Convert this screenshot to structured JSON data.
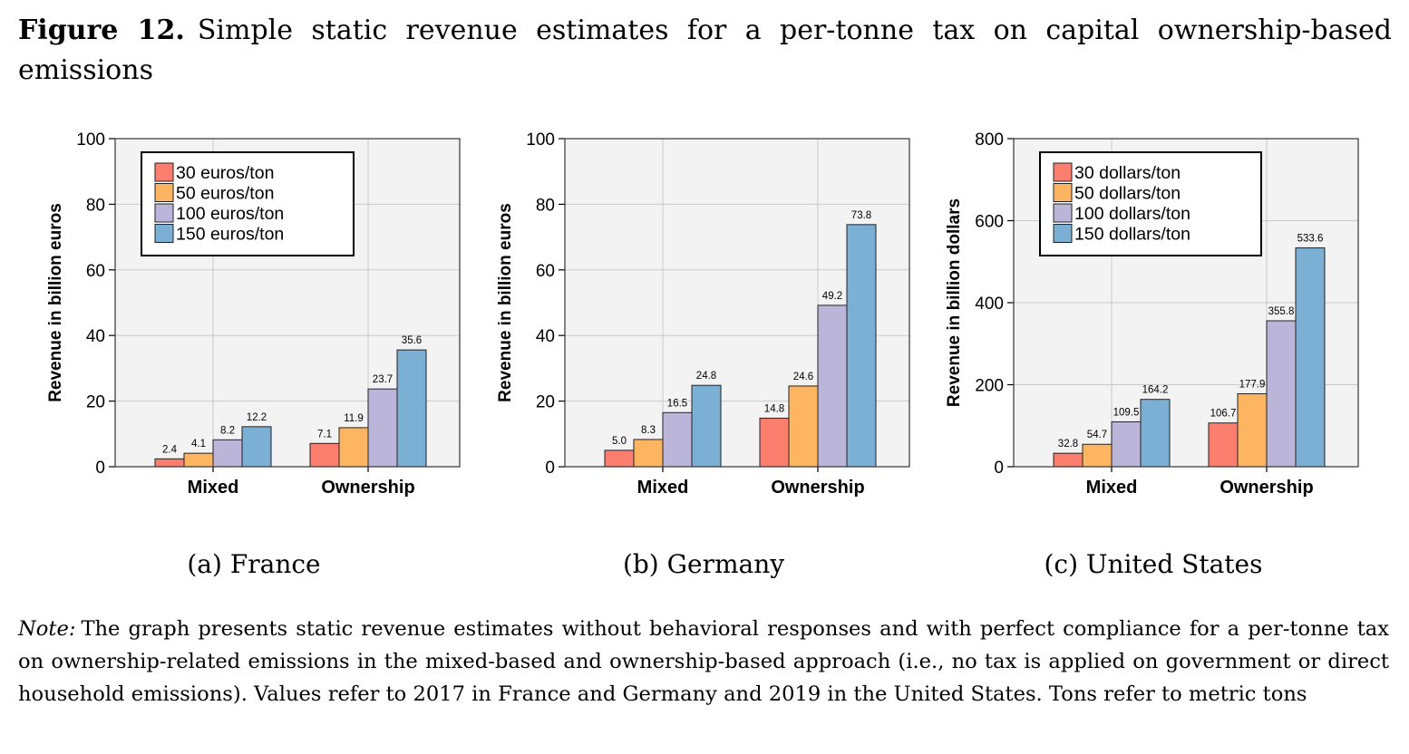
{
  "figure": {
    "label": "Figure 12.",
    "title": "Simple static revenue estimates for a per-tonne tax on capital ownership-based emissions"
  },
  "note": {
    "label": "Note:",
    "text": "The graph presents static revenue estimates without behavioral responses and with perfect compliance for a per-tonne tax on ownership-related emissions in the mixed-based and ownership-based approach (i.e., no tax is applied on government or direct household emissions). Values refer to 2017 in France and Germany and 2019 in the United States. Tons refer to metric tons"
  },
  "colors": {
    "series": [
      "#fb7e6e",
      "#fdb562",
      "#bbb5d9",
      "#7bafd4"
    ],
    "panel_bg": "#f3f3f3",
    "grid": "#c9c9c9"
  },
  "chart_data": [
    {
      "type": "bar",
      "subcaption": "(a) France",
      "categories": [
        "Mixed",
        "Ownership"
      ],
      "ylabel": "Revenue in billion euros",
      "ylim": [
        0,
        100
      ],
      "yticks": [
        0,
        20,
        40,
        60,
        80,
        100
      ],
      "grid": true,
      "legend_position": "top-left",
      "series": [
        {
          "name": "30 euros/ton",
          "values": [
            2.4,
            7.1
          ],
          "labels": [
            "2.4",
            "7.1"
          ]
        },
        {
          "name": "50 euros/ton",
          "values": [
            4.1,
            11.9
          ],
          "labels": [
            "4.1",
            "11.9"
          ]
        },
        {
          "name": "100 euros/ton",
          "values": [
            8.2,
            23.7
          ],
          "labels": [
            "8.2",
            "23.7"
          ]
        },
        {
          "name": "150 euros/ton",
          "values": [
            12.2,
            35.6
          ],
          "labels": [
            "12.2",
            "35.6"
          ]
        }
      ]
    },
    {
      "type": "bar",
      "subcaption": "(b) Germany",
      "categories": [
        "Mixed",
        "Ownership"
      ],
      "ylabel": "Revenue in billion euros",
      "ylim": [
        0,
        100
      ],
      "yticks": [
        0,
        20,
        40,
        60,
        80,
        100
      ],
      "grid": true,
      "legend_position": "none",
      "series": [
        {
          "values": [
            5.0,
            14.8
          ],
          "labels": [
            "5.0",
            "14.8"
          ]
        },
        {
          "values": [
            8.3,
            24.6
          ],
          "labels": [
            "8.3",
            "24.6"
          ]
        },
        {
          "values": [
            16.5,
            49.2
          ],
          "labels": [
            "16.5",
            "49.2"
          ]
        },
        {
          "values": [
            24.8,
            73.8
          ],
          "labels": [
            "24.8",
            "73.8"
          ]
        }
      ]
    },
    {
      "type": "bar",
      "subcaption": "(c) United States",
      "categories": [
        "Mixed",
        "Ownership"
      ],
      "ylabel": "Revenue in billion dollars",
      "ylim": [
        0,
        800
      ],
      "yticks": [
        0,
        200,
        400,
        600,
        800
      ],
      "grid": true,
      "legend_position": "top-left",
      "series": [
        {
          "name": "30 dollars/ton",
          "values": [
            32.8,
            106.7
          ],
          "labels": [
            "32.8",
            "106.7"
          ]
        },
        {
          "name": "50 dollars/ton",
          "values": [
            54.7,
            177.9
          ],
          "labels": [
            "54.7",
            "177.9"
          ]
        },
        {
          "name": "100 dollars/ton",
          "values": [
            109.5,
            355.8
          ],
          "labels": [
            "109.5",
            "355.8"
          ]
        },
        {
          "name": "150 dollars/ton",
          "values": [
            164.2,
            533.6
          ],
          "labels": [
            "164.2",
            "533.6"
          ]
        }
      ]
    }
  ]
}
